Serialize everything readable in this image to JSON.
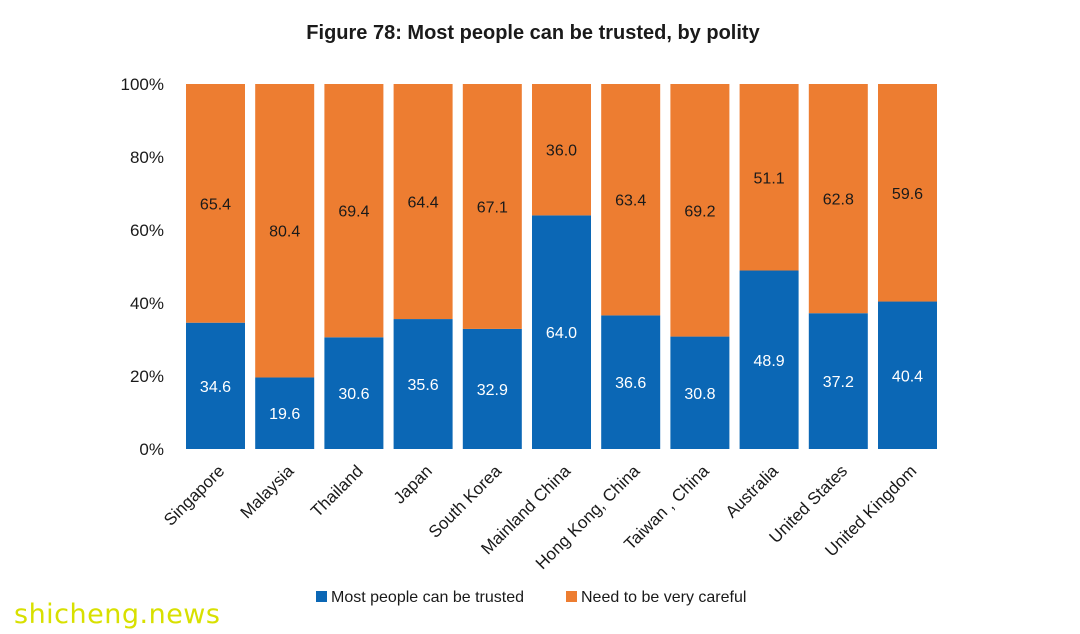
{
  "watermark": "shicheng.news",
  "chart_data": {
    "type": "bar",
    "stacked": true,
    "title": "Figure 78: Most people can be trusted, by polity",
    "xlabel": "",
    "ylabel": "",
    "ylim": [
      0,
      100
    ],
    "yticks": [
      "0%",
      "20%",
      "40%",
      "60%",
      "80%",
      "100%"
    ],
    "grid": false,
    "legend_position": "bottom",
    "categories": [
      "Singapore",
      "Malaysia",
      "Thailand",
      "Japan",
      "South Korea",
      "Mainland China",
      "Hong Kong, China",
      "Taiwan , China",
      "Australia",
      "United States",
      "United Kingdom"
    ],
    "series": [
      {
        "name": "Most people can be trusted",
        "color": "#0b67b5",
        "values": [
          34.6,
          19.6,
          30.6,
          35.6,
          32.9,
          64.0,
          36.6,
          30.8,
          48.9,
          37.2,
          40.4
        ]
      },
      {
        "name": "Need to be very careful",
        "color": "#ed7d31",
        "values": [
          65.4,
          80.4,
          69.4,
          64.4,
          67.1,
          36.0,
          63.4,
          69.2,
          51.1,
          62.8,
          59.6
        ]
      }
    ]
  }
}
